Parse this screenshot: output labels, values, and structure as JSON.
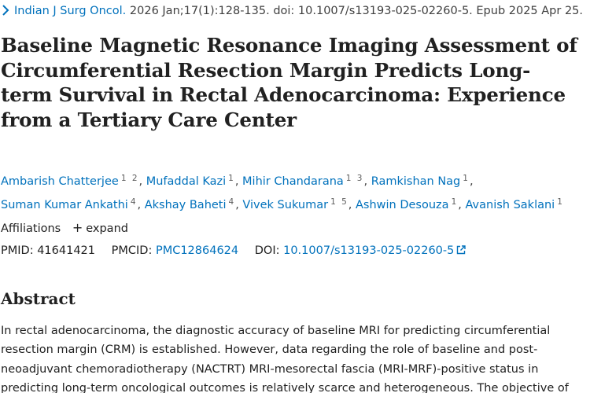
{
  "citation": {
    "journal": "Indian J Surg Oncol.",
    "details": "2026 Jan;17(1):128-135. doi: 10.1007/s13193-025-02260-5. Epub 2025 Apr 25."
  },
  "article": {
    "title_lines": [
      "Baseline Magnetic Resonance Imaging Assessment of",
      "Circumferential Resection Margin Predicts Long-",
      "term Survival in Rectal Adenocarcinoma: Experience",
      "from a Tertiary Care Center"
    ]
  },
  "authors": [
    {
      "name": "Ambarish Chatterjee",
      "sup": "1 2"
    },
    {
      "name": "Mufaddal Kazi",
      "sup": "1"
    },
    {
      "name": "Mihir Chandarana",
      "sup": "1 3"
    },
    {
      "name": "Ramkishan Nag",
      "sup": "1"
    },
    {
      "name": "Suman Kumar Ankathi",
      "sup": "4"
    },
    {
      "name": "Akshay Baheti",
      "sup": "4"
    },
    {
      "name": "Vivek Sukumar",
      "sup": "1 5"
    },
    {
      "name": "Ashwin Desouza",
      "sup": "1"
    },
    {
      "name": "Avanish Saklani",
      "sup": "1"
    }
  ],
  "affiliations": {
    "label": "Affiliations",
    "expand_label": "expand"
  },
  "identifiers": {
    "pmid_label": "PMID:",
    "pmid": "41641421",
    "pmcid_label": "PMCID:",
    "pmcid": "PMC12864624",
    "doi_label": "DOI:",
    "doi": "10.1007/s13193-025-02260-5"
  },
  "abstract": {
    "heading": "Abstract",
    "lines": [
      "In rectal adenocarcinoma, the diagnostic accuracy of baseline MRI for predicting circumferential",
      "resection margin (CRM) is established. However, data regarding the role of baseline and post-",
      "neoadjuvant chemoradiotherapy (NACTRT) MRI-mesorectal fascia (MRI-MRF)-positive status in",
      "predicting long-term oncological outcomes is relatively scarce and heterogeneous. The objective of"
    ]
  },
  "colors": {
    "link": "#0071bc",
    "text": "#212121",
    "muted": "#5c5c5c"
  },
  "icons": [
    "chevron-right-icon",
    "plus-icon",
    "external-link-icon"
  ]
}
